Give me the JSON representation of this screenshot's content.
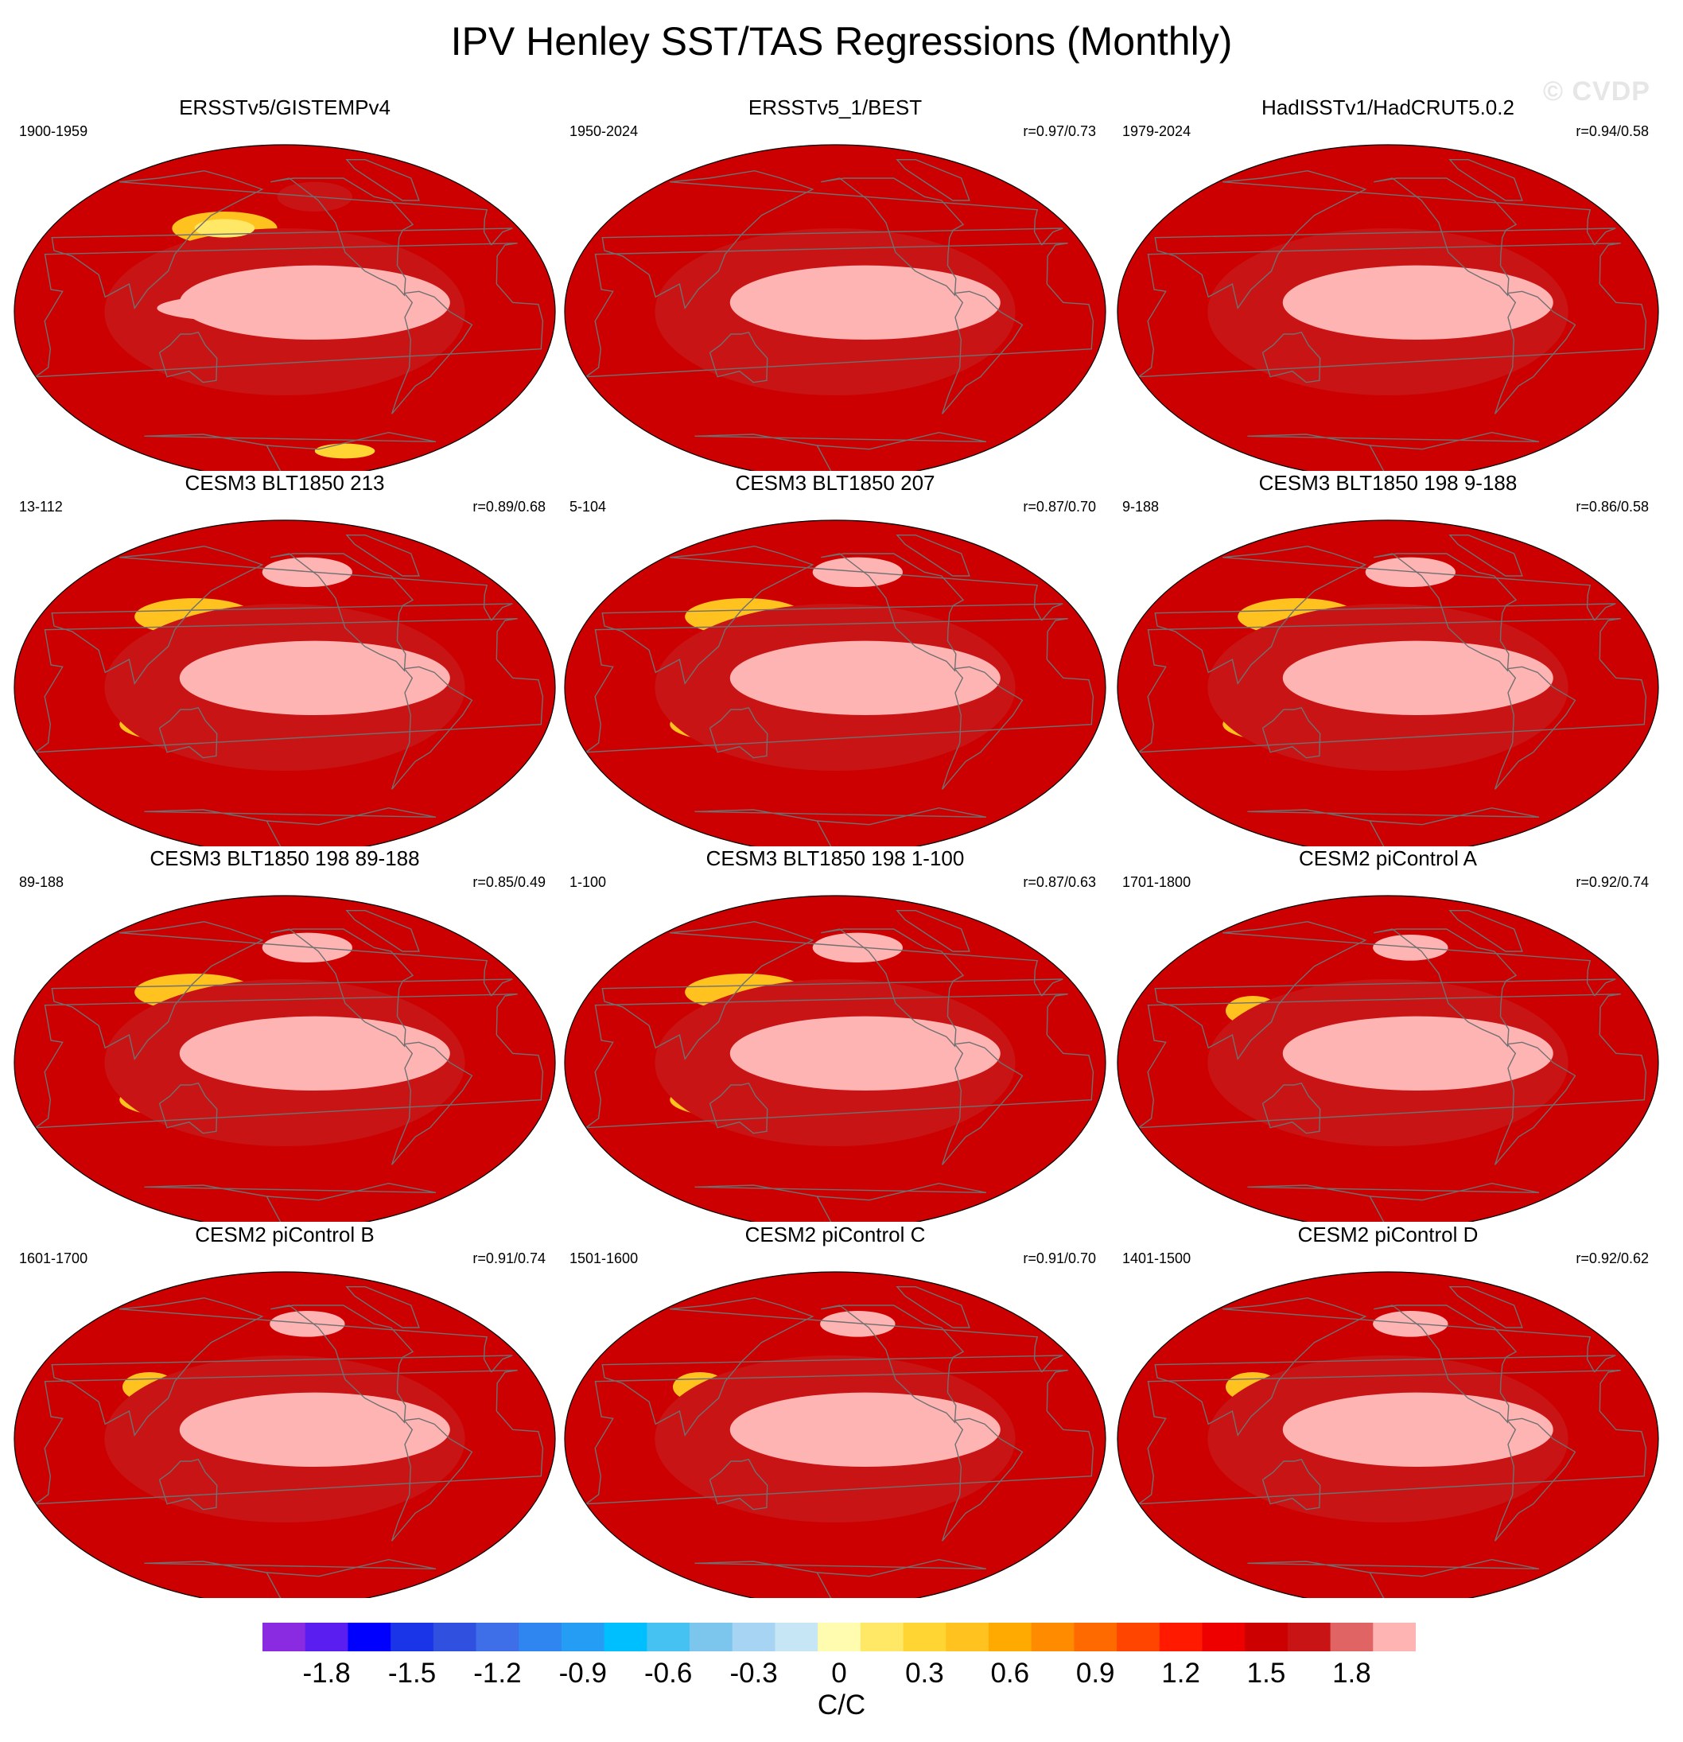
{
  "title": "IPV Henley SST/TAS Regressions (Monthly)",
  "watermark": "© CVDP",
  "chart_data": {
    "type": "heatmap",
    "description_units": "C/C",
    "panels": [
      {
        "title": "ERSSTv5/GISTEMPv4",
        "period": "1900-1959",
        "r": "",
        "variant": "obs1"
      },
      {
        "title": "ERSSTv5_1/BEST",
        "period": "1950-2024",
        "r": "r=0.97/0.73",
        "variant": "obs2"
      },
      {
        "title": "HadISSTv1/HadCRUT5.0.2",
        "period": "1979-2024",
        "r": "r=0.94/0.58",
        "variant": "obs3"
      },
      {
        "title": "CESM3 BLT1850 213",
        "period": "13-112",
        "r": "r=0.89/0.68",
        "variant": "cesm3"
      },
      {
        "title": "CESM3 BLT1850 207",
        "period": "5-104",
        "r": "r=0.87/0.70",
        "variant": "cesm3"
      },
      {
        "title": "CESM3 BLT1850 198 9-188",
        "period": "9-188",
        "r": "r=0.86/0.58",
        "variant": "cesm3"
      },
      {
        "title": "CESM3 BLT1850 198 89-188",
        "period": "89-188",
        "r": "r=0.85/0.49",
        "variant": "cesm3"
      },
      {
        "title": "CESM3 BLT1850 198 1-100",
        "period": "1-100",
        "r": "r=0.87/0.63",
        "variant": "cesm3"
      },
      {
        "title": "CESM2 piControl A",
        "period": "1701-1800",
        "r": "r=0.92/0.74",
        "variant": "cesm2"
      },
      {
        "title": "CESM2 piControl B",
        "period": "1601-1700",
        "r": "r=0.91/0.74",
        "variant": "cesm2"
      },
      {
        "title": "CESM2 piControl C",
        "period": "1501-1600",
        "r": "r=0.91/0.70",
        "variant": "cesm2"
      },
      {
        "title": "CESM2 piControl D",
        "period": "1401-1500",
        "r": "r=0.92/0.62",
        "variant": "cesm2"
      }
    ],
    "colorbar": {
      "units": "C/C",
      "boundaries": [
        -2.0,
        -1.9,
        -1.8,
        -1.7,
        -1.6,
        -1.5,
        -1.4,
        -1.3,
        -1.2,
        -1.1,
        -1.0,
        -0.9,
        -0.8,
        -0.7,
        -0.6,
        -0.5,
        -0.4,
        -0.3,
        -0.2,
        -0.1,
        0,
        0.1,
        0.2,
        0.3,
        0.4,
        0.5,
        0.6,
        0.7,
        0.8,
        0.9,
        1.0,
        1.1,
        1.2,
        1.3,
        1.4,
        1.5,
        1.6,
        1.7,
        1.8,
        1.9,
        2.0
      ],
      "tick_labels": [
        "-1.8",
        "-1.5",
        "-1.2",
        "-0.9",
        "-0.6",
        "-0.3",
        "0",
        "0.3",
        "0.6",
        "0.9",
        "1.2",
        "1.5",
        "1.8"
      ],
      "tick_values": [
        -1.8,
        -1.5,
        -1.2,
        -0.9,
        -0.6,
        -0.3,
        0,
        0.3,
        0.6,
        0.9,
        1.2,
        1.5,
        1.8
      ],
      "colors": [
        "#8a2be2",
        "#5a1ef0",
        "#0000ff",
        "#1a35e8",
        "#3050e0",
        "#3e6ee8",
        "#2f86f0",
        "#259df5",
        "#00bfff",
        "#45c2f2",
        "#7cc6ee",
        "#a6d4f2",
        "#c6e6f6",
        "#fffcb0",
        "#ffe866",
        "#ffd533",
        "#ffc21f",
        "#ffaa00",
        "#ff8c00",
        "#ff6a00",
        "#ff4500",
        "#ff1a00",
        "#ee0000",
        "#cc0000",
        "#c81414",
        "#e06464",
        "#ffb4b4"
      ]
    }
  }
}
